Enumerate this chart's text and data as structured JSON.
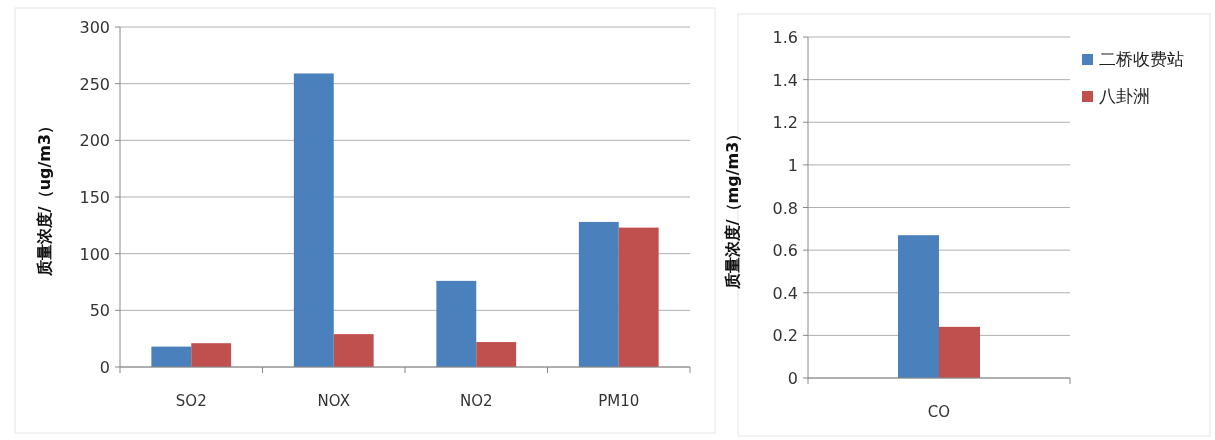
{
  "chart_data": [
    {
      "type": "bar",
      "ylabel": "质量浓度/（ug/m3）",
      "categories": [
        "SO2",
        "NOX",
        "NO2",
        "PM10"
      ],
      "series": [
        {
          "color": "#4a81bd",
          "values": [
            18,
            259,
            76,
            128
          ]
        },
        {
          "color": "#c0504d",
          "values": [
            21,
            29,
            22,
            123
          ]
        }
      ],
      "ylim": [
        0,
        300
      ],
      "yticks": [
        0,
        50,
        100,
        150,
        200,
        250,
        300
      ],
      "grid": "y"
    },
    {
      "type": "bar",
      "ylabel": "质量浓度/（mg/m3）",
      "categories": [
        "CO"
      ],
      "series": [
        {
          "name": "二桥收费站",
          "color": "#4a81bd",
          "values": [
            0.67
          ]
        },
        {
          "name": "八卦洲",
          "color": "#c0504d",
          "values": [
            0.24
          ]
        }
      ],
      "ylim": [
        0,
        1.6
      ],
      "yticks": [
        0,
        0.2,
        0.4,
        0.6,
        0.8,
        1,
        1.2,
        1.4,
        1.6
      ],
      "grid": "y",
      "legend": "right"
    }
  ]
}
